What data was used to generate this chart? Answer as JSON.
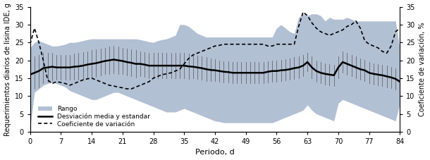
{
  "x": [
    0,
    1,
    2,
    3,
    4,
    5,
    6,
    7,
    8,
    9,
    10,
    11,
    12,
    13,
    14,
    15,
    16,
    17,
    18,
    19,
    20,
    21,
    22,
    23,
    24,
    25,
    26,
    27,
    28,
    29,
    30,
    31,
    32,
    33,
    34,
    35,
    36,
    37,
    38,
    39,
    40,
    41,
    42,
    43,
    44,
    45,
    46,
    47,
    48,
    49,
    50,
    51,
    52,
    53,
    54,
    55,
    56,
    57,
    58,
    59,
    60,
    61,
    62,
    63,
    64,
    65,
    66,
    67,
    68,
    69,
    70,
    71,
    72,
    73,
    74,
    75,
    76,
    77,
    78,
    79,
    80,
    81,
    82,
    83,
    84
  ],
  "mean": [
    16.0,
    16.5,
    17.0,
    17.8,
    18.0,
    18.2,
    18.0,
    18.0,
    18.0,
    18.0,
    18.2,
    18.3,
    18.5,
    18.8,
    19.0,
    19.2,
    19.5,
    19.8,
    20.0,
    20.2,
    20.0,
    19.8,
    19.5,
    19.3,
    19.0,
    19.0,
    18.8,
    18.5,
    18.5,
    18.5,
    18.5,
    18.5,
    18.5,
    18.5,
    18.5,
    18.5,
    18.3,
    18.2,
    18.0,
    17.8,
    17.5,
    17.3,
    17.2,
    17.0,
    16.8,
    16.7,
    16.5,
    16.5,
    16.5,
    16.5,
    16.5,
    16.5,
    16.5,
    16.5,
    16.8,
    17.0,
    17.0,
    17.2,
    17.3,
    17.5,
    17.8,
    18.0,
    18.5,
    19.5,
    18.0,
    17.0,
    16.5,
    16.2,
    16.0,
    15.8,
    18.0,
    19.5,
    19.0,
    18.5,
    18.0,
    17.5,
    17.2,
    16.5,
    16.2,
    16.0,
    15.8,
    15.5,
    15.2,
    14.8,
    14.0
  ],
  "upper_sd": [
    20.5,
    21.0,
    21.5,
    22.0,
    22.0,
    22.0,
    21.5,
    21.5,
    21.5,
    21.5,
    21.8,
    22.0,
    22.2,
    22.5,
    22.8,
    23.0,
    23.2,
    23.5,
    23.8,
    24.0,
    23.8,
    23.5,
    23.2,
    23.0,
    22.8,
    22.5,
    22.2,
    22.0,
    22.0,
    22.0,
    22.0,
    22.0,
    22.0,
    22.0,
    22.0,
    22.0,
    21.8,
    21.5,
    21.2,
    21.0,
    20.8,
    20.5,
    20.3,
    20.0,
    19.8,
    19.7,
    19.5,
    19.5,
    19.5,
    19.5,
    19.5,
    19.5,
    19.5,
    19.5,
    19.8,
    20.0,
    20.0,
    20.2,
    20.3,
    20.5,
    20.8,
    21.0,
    21.5,
    22.0,
    21.0,
    20.0,
    19.5,
    19.2,
    19.0,
    18.8,
    21.0,
    22.5,
    22.0,
    21.5,
    21.0,
    20.5,
    20.2,
    19.5,
    19.2,
    19.0,
    18.8,
    18.5,
    18.2,
    17.8,
    17.0
  ],
  "lower_sd": [
    11.5,
    12.0,
    12.5,
    13.5,
    14.0,
    14.3,
    14.5,
    14.5,
    14.5,
    14.5,
    14.6,
    14.6,
    14.8,
    15.1,
    15.2,
    15.4,
    15.8,
    16.1,
    16.2,
    16.4,
    16.2,
    16.1,
    15.8,
    15.6,
    15.2,
    15.5,
    15.4,
    15.0,
    15.0,
    15.0,
    15.0,
    15.0,
    15.0,
    15.0,
    15.0,
    15.0,
    14.8,
    14.9,
    14.8,
    14.6,
    14.2,
    14.1,
    14.1,
    14.0,
    13.8,
    13.7,
    13.5,
    13.5,
    13.5,
    13.5,
    13.5,
    13.5,
    13.5,
    13.5,
    13.8,
    14.0,
    14.0,
    14.2,
    14.3,
    14.5,
    14.8,
    15.0,
    15.5,
    17.0,
    15.0,
    14.0,
    13.5,
    13.2,
    13.0,
    12.8,
    15.0,
    16.5,
    16.0,
    15.5,
    15.0,
    14.5,
    14.2,
    13.5,
    13.2,
    13.0,
    12.8,
    12.5,
    12.2,
    11.8,
    11.0
  ],
  "range_upper": [
    23.5,
    25.0,
    25.5,
    25.0,
    24.5,
    24.0,
    24.0,
    24.2,
    24.5,
    25.0,
    25.0,
    25.2,
    25.5,
    25.8,
    26.0,
    26.0,
    26.0,
    26.0,
    26.0,
    26.0,
    26.0,
    26.0,
    26.0,
    26.0,
    26.0,
    25.8,
    25.5,
    25.2,
    25.0,
    25.5,
    25.8,
    26.0,
    26.5,
    27.0,
    30.0,
    30.0,
    29.5,
    28.5,
    27.5,
    27.0,
    26.5,
    26.5,
    26.5,
    26.5,
    26.5,
    26.5,
    26.5,
    26.5,
    26.5,
    26.5,
    26.5,
    26.5,
    26.5,
    26.5,
    26.5,
    26.5,
    29.0,
    30.0,
    29.0,
    28.0,
    27.5,
    32.0,
    33.0,
    32.5,
    33.0,
    33.0,
    32.5,
    31.0,
    32.0,
    31.5,
    31.5,
    31.5,
    32.0,
    31.5,
    31.0,
    31.0,
    31.0,
    31.0,
    31.0,
    31.0,
    31.0,
    31.0,
    31.0,
    31.0,
    23.0
  ],
  "range_lower": [
    1.0,
    11.0,
    12.0,
    13.0,
    13.5,
    13.8,
    13.5,
    13.0,
    12.5,
    11.5,
    11.0,
    10.5,
    10.0,
    9.5,
    9.0,
    9.0,
    9.5,
    10.0,
    10.5,
    11.0,
    11.0,
    10.5,
    10.0,
    9.5,
    9.0,
    8.5,
    8.0,
    7.5,
    7.0,
    6.5,
    6.0,
    5.5,
    5.5,
    5.5,
    6.0,
    6.5,
    6.0,
    5.5,
    5.0,
    4.5,
    4.0,
    3.5,
    3.0,
    2.8,
    2.5,
    2.5,
    2.5,
    2.5,
    2.5,
    2.5,
    2.5,
    2.5,
    2.5,
    2.5,
    2.5,
    2.5,
    3.0,
    3.5,
    4.0,
    4.5,
    5.0,
    5.5,
    6.0,
    7.5,
    6.0,
    5.0,
    4.5,
    4.0,
    3.5,
    3.0,
    8.0,
    9.0,
    8.5,
    8.0,
    7.5,
    7.0,
    6.5,
    6.0,
    5.5,
    5.0,
    4.5,
    4.0,
    3.5,
    3.0,
    8.0
  ],
  "cv": [
    24.5,
    29.0,
    25.0,
    20.0,
    14.5,
    13.5,
    14.0,
    13.8,
    13.5,
    13.0,
    13.5,
    14.0,
    14.5,
    14.8,
    15.0,
    14.5,
    14.0,
    13.5,
    13.0,
    12.8,
    12.5,
    12.3,
    12.0,
    12.0,
    12.5,
    13.0,
    13.5,
    14.0,
    15.0,
    15.5,
    16.0,
    16.2,
    16.5,
    17.0,
    17.5,
    19.0,
    20.5,
    21.5,
    22.0,
    22.5,
    23.0,
    23.5,
    24.0,
    24.2,
    24.5,
    24.5,
    24.5,
    24.5,
    24.5,
    24.5,
    24.5,
    24.5,
    24.5,
    24.5,
    24.0,
    24.0,
    24.5,
    24.5,
    24.5,
    24.5,
    24.5,
    29.5,
    33.5,
    32.5,
    30.5,
    29.0,
    28.0,
    27.5,
    27.0,
    27.5,
    28.0,
    28.5,
    29.5,
    30.0,
    31.0,
    29.0,
    25.5,
    24.5,
    24.0,
    23.5,
    22.5,
    22.0,
    24.0,
    28.0,
    29.0
  ],
  "ylim_left": [
    0,
    35
  ],
  "ylim_right": [
    0,
    35
  ],
  "yticks_left": [
    0,
    5,
    10,
    15,
    20,
    25,
    30,
    35
  ],
  "yticks_right": [
    0,
    5,
    10,
    15,
    20,
    25,
    30,
    35
  ],
  "xticks": [
    0,
    7,
    14,
    21,
    28,
    35,
    42,
    49,
    56,
    63,
    70,
    77,
    84
  ],
  "fill_color": "#8096b8",
  "fill_alpha": 0.6,
  "sd_bar_color": "#666666",
  "line_color": "#000000",
  "cv_line_color": "#000000",
  "xlabel": "Periodo, d",
  "ylabel_left": "Requerimientos diarios de lisina IDE, g",
  "ylabel_right": "Coeficiente de variación, %",
  "legend_rango": "Rango",
  "legend_desv": "Desviación media y estandar",
  "legend_cv": "Coeficiente de variación",
  "figsize": [
    6.1,
    2.27
  ],
  "dpi": 100
}
